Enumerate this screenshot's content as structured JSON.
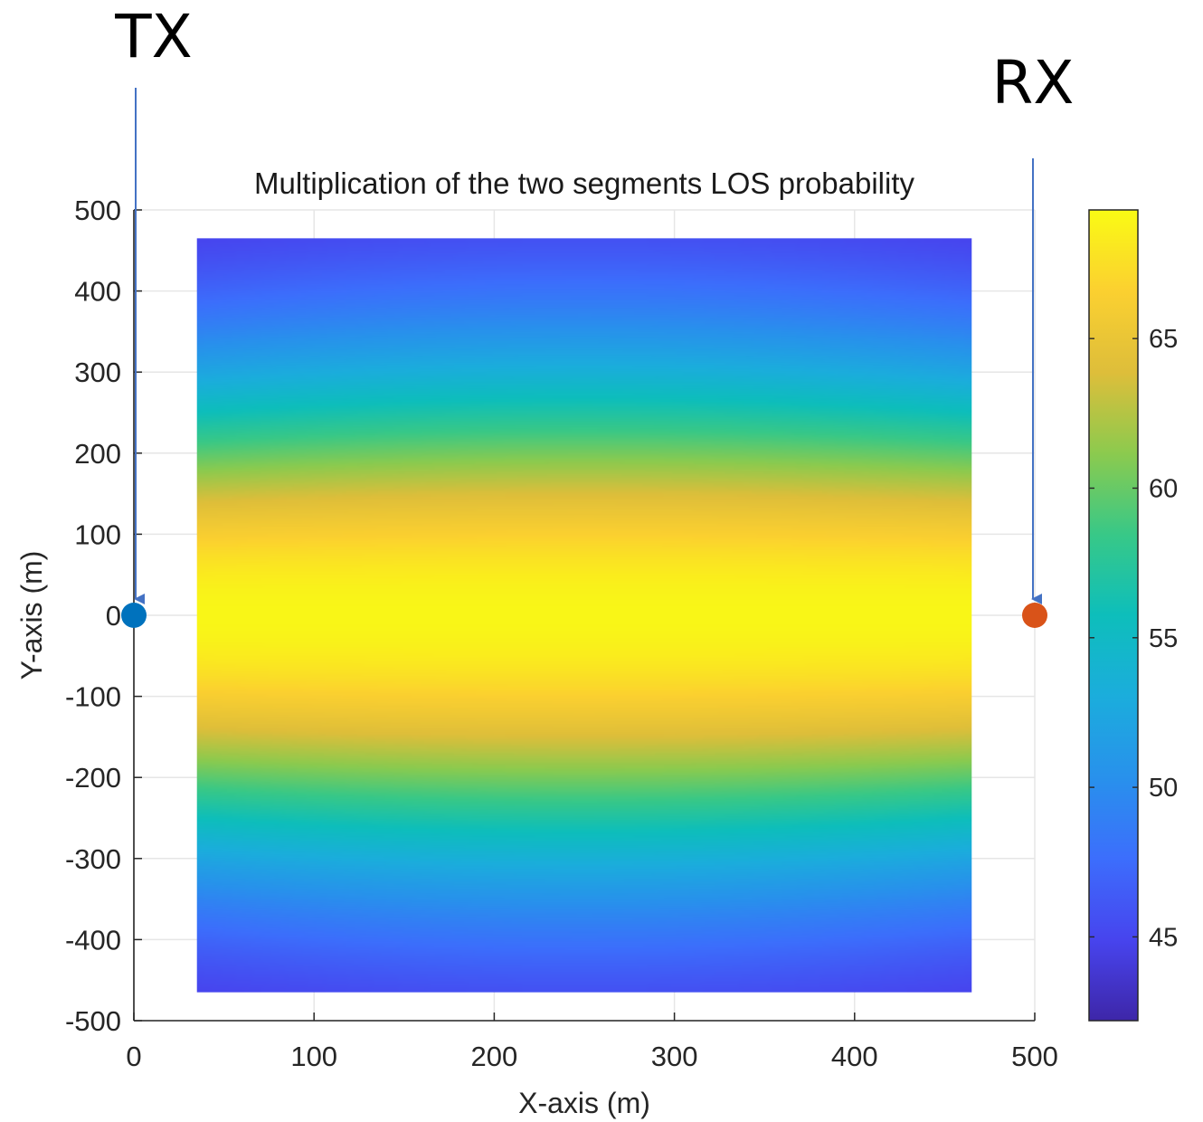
{
  "chart_data": {
    "type": "heatmap",
    "title": "Multiplication of the two segments LOS probability",
    "xlabel": "X-axis (m)",
    "ylabel": "Y-axis (m)",
    "xlim": [
      0,
      500
    ],
    "ylim": [
      -500,
      500
    ],
    "xticks": [
      "0",
      "100",
      "200",
      "300",
      "400",
      "500"
    ],
    "yticks": [
      "500",
      "400",
      "300",
      "200",
      "100",
      "0",
      "-100",
      "-200",
      "-300",
      "-400",
      "-500"
    ],
    "grid": true,
    "heatmap_extent": {
      "x": [
        35,
        465
      ],
      "y": [
        -465,
        465
      ]
    },
    "value_range": [
      42.2,
      69.3
    ],
    "center_value": 69,
    "edge_value": 42.5,
    "colormap": "parula",
    "colorbar": {
      "ticks": [
        "45",
        "50",
        "55",
        "60",
        "65"
      ],
      "range": [
        42.2,
        69.3
      ]
    },
    "markers": [
      {
        "label": "TX",
        "x": 0,
        "y": 0,
        "color": "#0072bd"
      },
      {
        "label": "RX",
        "x": 500,
        "y": 0,
        "color": "#d95319"
      }
    ],
    "arrow_color": "#4472c4"
  }
}
